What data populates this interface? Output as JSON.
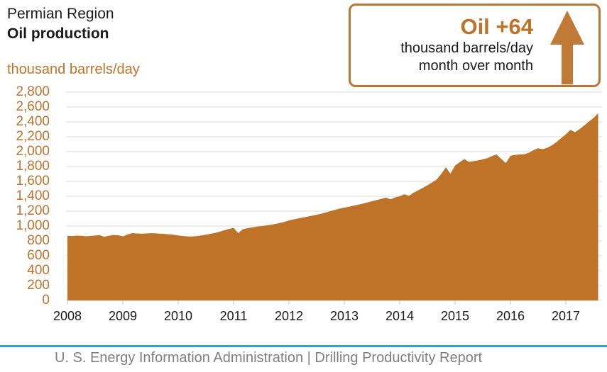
{
  "header": {
    "region": "Permian Region",
    "metric": "Oil production",
    "unit": "thousand barrels/day"
  },
  "callout": {
    "headline": "Oil +64",
    "line2": "thousand barrels/day",
    "line3": "month over month",
    "arrow_icon": "up-arrow"
  },
  "footer": {
    "text": "U. S. Energy Information Administration  |  Drilling Productivity Report"
  },
  "colors": {
    "accent_brown": "#BF7327",
    "callout_border": "#C0742F",
    "arrow": "#C17A35",
    "gridline": "#D9D9D9",
    "axis_tick": "#C4C4C4",
    "y_label": "#C0722D",
    "text_dark": "#1A1A1A",
    "footer_line_blue": "#2BA3DC",
    "footer_text_gray": "#7F7F7F"
  },
  "chart_data": {
    "type": "area",
    "title": "Permian Region Oil production",
    "ylabel": "thousand barrels/day",
    "xlabel": "",
    "frequency": "monthly",
    "x_start": "2008-01",
    "x_end": "2017-08",
    "ylim": [
      0,
      2800
    ],
    "grid": "horizontal",
    "legend": "none",
    "y_ticks": [
      0,
      200,
      400,
      600,
      800,
      1000,
      1200,
      1400,
      1600,
      1800,
      2000,
      2200,
      2400,
      2600,
      2800
    ],
    "y_tick_labels": [
      "0",
      "200",
      "400",
      "600",
      "800",
      "1,000",
      "1,200",
      "1,400",
      "1,600",
      "1,800",
      "2,000",
      "2,200",
      "2,400",
      "2,600",
      "2,800"
    ],
    "x_tick_labels": [
      "2008",
      "2009",
      "2010",
      "2011",
      "2012",
      "2013",
      "2014",
      "2015",
      "2016",
      "2017"
    ],
    "series": [
      {
        "name": "Permian region oil production",
        "values": [
          870,
          866,
          871,
          869,
          863,
          867,
          872,
          876,
          856,
          869,
          880,
          877,
          861,
          886,
          905,
          900,
          897,
          900,
          904,
          902,
          898,
          894,
          889,
          884,
          874,
          867,
          861,
          859,
          865,
          873,
          883,
          895,
          909,
          924,
          944,
          961,
          975,
          905,
          957,
          971,
          981,
          991,
          999,
          1007,
          1017,
          1028,
          1041,
          1056,
          1075,
          1090,
          1102,
          1114,
          1126,
          1139,
          1152,
          1166,
          1182,
          1200,
          1218,
          1234,
          1248,
          1260,
          1273,
          1287,
          1301,
          1317,
          1333,
          1349,
          1365,
          1382,
          1360,
          1385,
          1400,
          1428,
          1406,
          1448,
          1480,
          1513,
          1548,
          1585,
          1625,
          1700,
          1790,
          1705,
          1812,
          1858,
          1900,
          1862,
          1872,
          1882,
          1896,
          1912,
          1940,
          1962,
          1902,
          1847,
          1944,
          1956,
          1962,
          1966,
          1986,
          2020,
          2046,
          2032,
          2052,
          2086,
          2130,
          2182,
          2232,
          2292,
          2262,
          2304,
          2352,
          2404,
          2452,
          2516
        ]
      }
    ],
    "fill_color": "#BF7327"
  }
}
